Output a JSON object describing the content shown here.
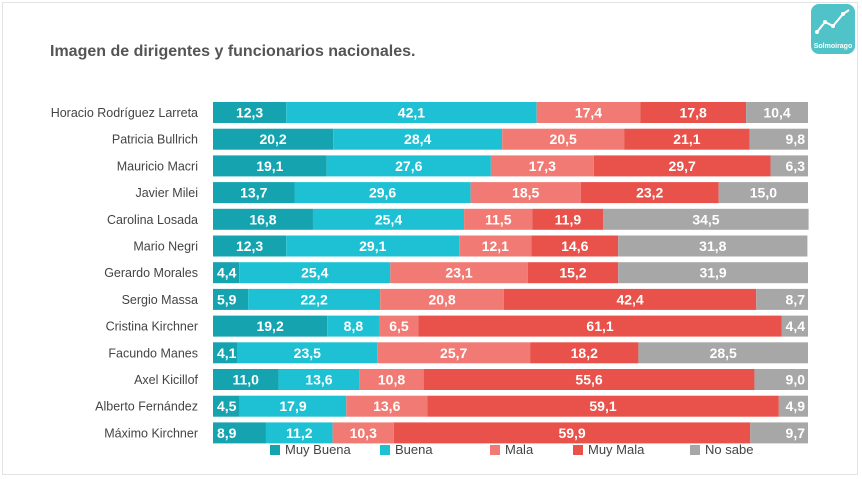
{
  "title": "Imagen de dirigentes y funcionarios nacionales.",
  "logo": {
    "text": "Solmoirago",
    "color": "#4fc3c7"
  },
  "chart_data": {
    "type": "bar",
    "orientation": "horizontal",
    "stacked": true,
    "categories": [
      "Horacio Rodríguez Larreta",
      "Patricia Bullrich",
      "Mauricio Macri",
      "Javier Milei",
      "Carolina Losada",
      "Mario Negri",
      "Gerardo Morales",
      "Sergio Massa",
      "Cristina Kirchner",
      "Facundo Manes",
      "Axel Kicillof",
      "Alberto Fernández",
      "Máximo Kirchner"
    ],
    "series": [
      {
        "name": "Muy Buena",
        "color": "#16a3b0",
        "values": [
          12.3,
          20.2,
          19.1,
          13.7,
          16.8,
          12.3,
          4.4,
          5.9,
          19.2,
          4.1,
          11.0,
          4.5,
          8.9
        ],
        "labels": [
          "12,3",
          "20,2",
          "19,1",
          "13,7",
          "16,8",
          "12,3",
          "4,4",
          "5,9",
          "19,2",
          "4,1",
          "11,0",
          "4,5",
          "8,9"
        ]
      },
      {
        "name": "Buena",
        "color": "#1ec1d3",
        "values": [
          42.1,
          28.4,
          27.6,
          29.6,
          25.4,
          29.1,
          25.4,
          22.2,
          8.8,
          23.5,
          13.6,
          17.9,
          11.2
        ],
        "labels": [
          "42,1",
          "28,4",
          "27,6",
          "29,6",
          "25,4",
          "29,1",
          "25,4",
          "22,2",
          "8,8",
          "23,5",
          "13,6",
          "17,9",
          "11,2"
        ]
      },
      {
        "name": "Mala",
        "color": "#f17b74",
        "values": [
          17.4,
          20.5,
          17.3,
          18.5,
          11.5,
          12.1,
          23.1,
          20.8,
          6.5,
          25.7,
          10.8,
          13.6,
          10.3
        ],
        "labels": [
          "17,4",
          "20,5",
          "17,3",
          "18,5",
          "11,5",
          "12,1",
          "23,1",
          "20,8",
          "6,5",
          "25,7",
          "10,8",
          "13,6",
          "10,3"
        ]
      },
      {
        "name": "Muy Mala",
        "color": "#e8524a",
        "values": [
          17.8,
          21.1,
          29.7,
          23.2,
          11.9,
          14.6,
          15.2,
          42.4,
          61.1,
          18.2,
          55.6,
          59.1,
          59.9
        ],
        "labels": [
          "17,8",
          "21,1",
          "29,7",
          "23,2",
          "11,9",
          "14,6",
          "15,2",
          "42,4",
          "61,1",
          "18,2",
          "55,6",
          "59,1",
          "59,9"
        ]
      },
      {
        "name": "No sabe",
        "color": "#a7a7a7",
        "values": [
          10.4,
          9.8,
          6.3,
          15.0,
          34.5,
          31.8,
          31.9,
          8.7,
          4.4,
          28.5,
          9.0,
          4.9,
          9.7
        ],
        "labels": [
          "10,4",
          "9,8",
          "6,3",
          "15,0",
          "34,5",
          "31,8",
          "31,9",
          "8,7",
          "4,4",
          "28,5",
          "9,0",
          "4,9",
          "9,7"
        ]
      }
    ],
    "xlim": [
      0,
      100
    ],
    "legend_position": "bottom",
    "grid": false
  }
}
